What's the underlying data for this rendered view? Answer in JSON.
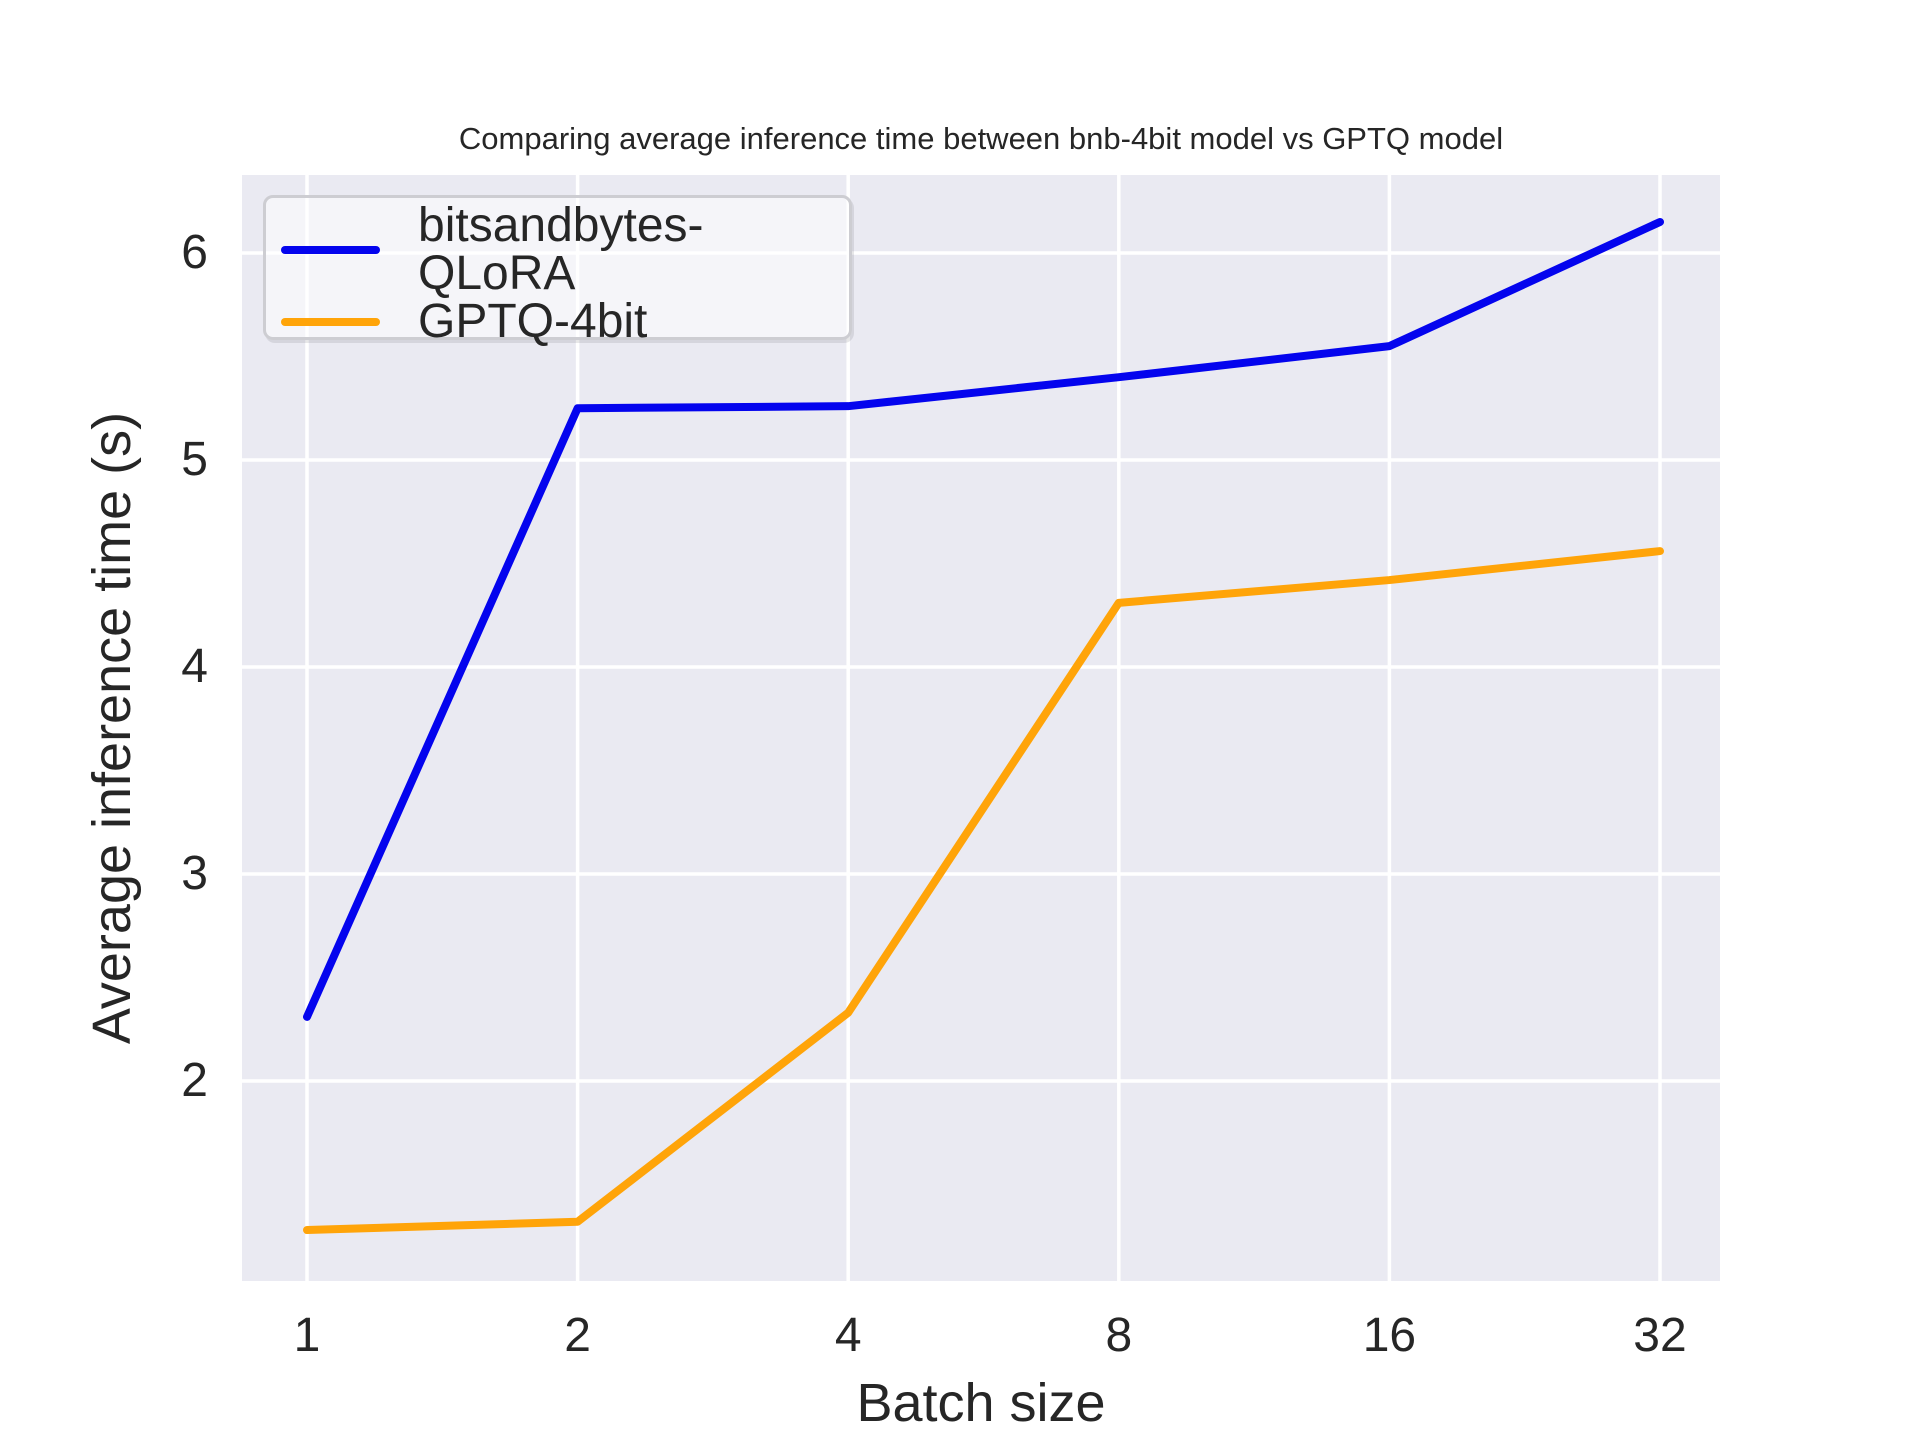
{
  "chart_data": {
    "type": "line",
    "title": "Comparing average inference time between bnb-4bit model vs GPTQ model",
    "xlabel": "Batch size",
    "ylabel": "Average inference time (s)",
    "x_scale": "log2",
    "categories": [
      1,
      2,
      4,
      8,
      16,
      32
    ],
    "yticks": [
      2,
      3,
      4,
      5,
      6
    ],
    "ylim": [
      1.03,
      6.38
    ],
    "grid": true,
    "legend_position": "upper left",
    "series": [
      {
        "name": "bitsandbytes-QLoRA",
        "color": "#0404ee",
        "values": [
          2.31,
          5.25,
          5.26,
          5.4,
          5.55,
          6.15
        ]
      },
      {
        "name": "GPTQ-4bit",
        "color": "#ffa409",
        "values": [
          1.28,
          1.32,
          2.33,
          4.31,
          4.42,
          4.56
        ]
      }
    ],
    "colors": {
      "plot_background": "#eaeaf2",
      "gridline": "#ffffff",
      "text": "#262626",
      "figure_background": "#ffffff"
    }
  }
}
